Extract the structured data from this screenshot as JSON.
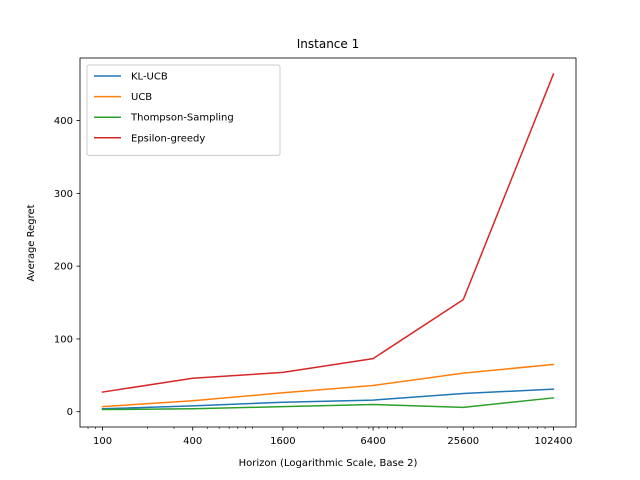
{
  "chart_data": {
    "type": "line",
    "title": "Instance 1",
    "xlabel": "Horizon (Logarithmic Scale, Base 2)",
    "ylabel": "Average Regret",
    "x_scale": "log2",
    "x": [
      100,
      400,
      1600,
      6400,
      25600,
      102400
    ],
    "x_tick_labels": [
      "100",
      "400",
      "1600",
      "6400",
      "25600",
      "102400"
    ],
    "ylim": [
      -21,
      486
    ],
    "y_ticks": [
      0,
      100,
      200,
      300,
      400
    ],
    "y_tick_labels": [
      "0",
      "100",
      "200",
      "300",
      "400"
    ],
    "grid": false,
    "legend_position": "top-left",
    "series": [
      {
        "name": "KL-UCB",
        "color": "#1f77b4",
        "values": [
          4,
          8,
          13,
          16,
          25,
          31
        ]
      },
      {
        "name": "UCB",
        "color": "#ff7f0e",
        "values": [
          7,
          15,
          26,
          36,
          53,
          65
        ]
      },
      {
        "name": "Thompson-Sampling",
        "color": "#2ca02c",
        "values": [
          3,
          4,
          7,
          10,
          6,
          19
        ]
      },
      {
        "name": "Epsilon-greedy",
        "color": "#d62728",
        "values": [
          27,
          46,
          54,
          73,
          154,
          464
        ]
      }
    ]
  }
}
